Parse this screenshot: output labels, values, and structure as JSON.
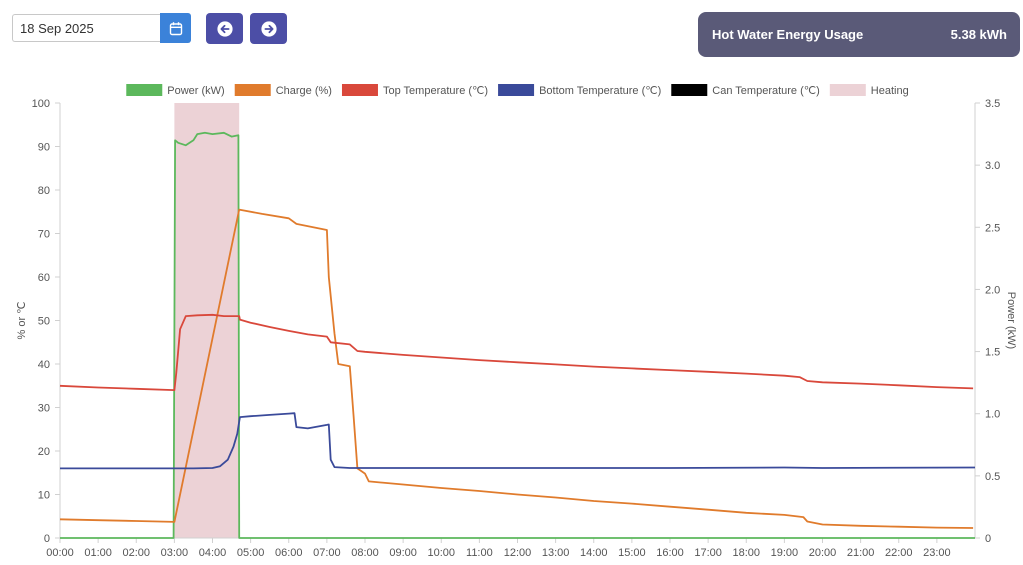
{
  "toolbar": {
    "date_value": "18 Sep 2025",
    "calendar_icon": "calendar-icon",
    "prev_icon": "arrow-left-circle-icon",
    "next_icon": "arrow-right-circle-icon"
  },
  "usage_card": {
    "label": "Hot Water Energy Usage",
    "value": "5.38 kWh"
  },
  "colors": {
    "accent_blue": "#3b82d9",
    "nav": "#4c4ea6",
    "card": "#5a5a78",
    "power": "#5cb85c",
    "charge": "#e07b2c",
    "top_temp": "#d9483b",
    "bottom_temp": "#3a4a9a",
    "can_temp": "#000000",
    "heating": "#ecd2d6"
  },
  "chart_data": {
    "type": "line",
    "legend_position": "top",
    "grid": false,
    "x_ticks": [
      "00:00",
      "01:00",
      "02:00",
      "03:00",
      "04:00",
      "05:00",
      "06:00",
      "07:00",
      "08:00",
      "09:00",
      "10:00",
      "11:00",
      "12:00",
      "13:00",
      "14:00",
      "15:00",
      "16:00",
      "17:00",
      "18:00",
      "19:00",
      "20:00",
      "21:00",
      "22:00",
      "23:00"
    ],
    "x_range_hours": [
      0,
      24
    ],
    "y_left": {
      "label": "% or ℃",
      "range": [
        0,
        100
      ],
      "ticks": [
        "0",
        "10",
        "20",
        "30",
        "40",
        "50",
        "60",
        "70",
        "80",
        "90",
        "100"
      ]
    },
    "y_right": {
      "label": "Power (kW)",
      "range": [
        0,
        3.5
      ],
      "ticks": [
        "0",
        "0.5",
        "1.0",
        "1.5",
        "2.0",
        "2.5",
        "3.0",
        "3.5"
      ]
    },
    "heating_periods": [
      [
        3.0,
        4.7
      ]
    ],
    "series": [
      {
        "name": "Power (kW)",
        "axis": "right",
        "color": "#5cb85c",
        "points": [
          [
            0,
            0
          ],
          [
            2.98,
            0
          ],
          [
            3.02,
            3.2
          ],
          [
            3.1,
            3.18
          ],
          [
            3.3,
            3.16
          ],
          [
            3.5,
            3.2
          ],
          [
            3.6,
            3.25
          ],
          [
            3.8,
            3.26
          ],
          [
            4.0,
            3.25
          ],
          [
            4.3,
            3.26
          ],
          [
            4.5,
            3.23
          ],
          [
            4.68,
            3.24
          ],
          [
            4.7,
            0
          ],
          [
            24,
            0
          ]
        ]
      },
      {
        "name": "Charge (%)",
        "axis": "left",
        "color": "#e07b2c",
        "points": [
          [
            0,
            4.3
          ],
          [
            1.0,
            4.1
          ],
          [
            2.0,
            3.9
          ],
          [
            3.0,
            3.7
          ],
          [
            4.7,
            75.5
          ],
          [
            5.3,
            74.5
          ],
          [
            6.0,
            73.5
          ],
          [
            6.2,
            72.2
          ],
          [
            7.0,
            70.8
          ],
          [
            7.05,
            60
          ],
          [
            7.2,
            47
          ],
          [
            7.3,
            40
          ],
          [
            7.6,
            39.5
          ],
          [
            7.7,
            28
          ],
          [
            7.8,
            16
          ],
          [
            8.0,
            14.8
          ],
          [
            8.1,
            13
          ],
          [
            9.0,
            12.3
          ],
          [
            10.0,
            11.5
          ],
          [
            11.0,
            10.8
          ],
          [
            12.0,
            10.0
          ],
          [
            13.0,
            9.3
          ],
          [
            14.0,
            8.5
          ],
          [
            15.0,
            7.9
          ],
          [
            16.0,
            7.2
          ],
          [
            17.0,
            6.5
          ],
          [
            18.0,
            5.8
          ],
          [
            19.0,
            5.3
          ],
          [
            19.5,
            4.8
          ],
          [
            19.6,
            3.8
          ],
          [
            20.0,
            3.1
          ],
          [
            21.0,
            2.8
          ],
          [
            22.0,
            2.6
          ],
          [
            23.0,
            2.4
          ],
          [
            23.95,
            2.3
          ]
        ]
      },
      {
        "name": "Top Temperature (℃)",
        "axis": "left",
        "color": "#d9483b",
        "points": [
          [
            0,
            35
          ],
          [
            1.0,
            34.6
          ],
          [
            2.0,
            34.3
          ],
          [
            3.0,
            34.0
          ],
          [
            3.05,
            38
          ],
          [
            3.15,
            48
          ],
          [
            3.3,
            51
          ],
          [
            3.6,
            51.2
          ],
          [
            4.0,
            51.3
          ],
          [
            4.3,
            51.0
          ],
          [
            4.7,
            51
          ],
          [
            4.72,
            50.2
          ],
          [
            5.0,
            49.5
          ],
          [
            5.5,
            48.5
          ],
          [
            6.0,
            47.6
          ],
          [
            6.5,
            46.8
          ],
          [
            7.0,
            46.3
          ],
          [
            7.1,
            45
          ],
          [
            7.6,
            44.5
          ],
          [
            7.8,
            43
          ],
          [
            8.0,
            42.8
          ],
          [
            9.0,
            42.1
          ],
          [
            10.0,
            41.5
          ],
          [
            11.0,
            40.9
          ],
          [
            12.0,
            40.4
          ],
          [
            13.0,
            39.9
          ],
          [
            14.0,
            39.4
          ],
          [
            15.0,
            39.0
          ],
          [
            16.0,
            38.6
          ],
          [
            17.0,
            38.2
          ],
          [
            18.0,
            37.8
          ],
          [
            19.0,
            37.3
          ],
          [
            19.4,
            37
          ],
          [
            19.6,
            36.1
          ],
          [
            20.0,
            35.8
          ],
          [
            21.0,
            35.5
          ],
          [
            22.0,
            35.1
          ],
          [
            23.0,
            34.7
          ],
          [
            23.95,
            34.4
          ]
        ]
      },
      {
        "name": "Bottom Temperature (℃)",
        "axis": "left",
        "color": "#3a4a9a",
        "points": [
          [
            0,
            16
          ],
          [
            3.0,
            16
          ],
          [
            3.5,
            16
          ],
          [
            4.0,
            16.1
          ],
          [
            4.2,
            16.5
          ],
          [
            4.4,
            18
          ],
          [
            4.55,
            21
          ],
          [
            4.65,
            24
          ],
          [
            4.72,
            27.8
          ],
          [
            5.0,
            28.0
          ],
          [
            5.5,
            28.3
          ],
          [
            6.0,
            28.6
          ],
          [
            6.15,
            28.7
          ],
          [
            6.2,
            25.5
          ],
          [
            6.5,
            25.2
          ],
          [
            7.0,
            26.0
          ],
          [
            7.05,
            26.1
          ],
          [
            7.1,
            18
          ],
          [
            7.2,
            16.3
          ],
          [
            7.6,
            16.1
          ],
          [
            8.0,
            16.1
          ],
          [
            12.0,
            16.1
          ],
          [
            16.0,
            16.1
          ],
          [
            19.0,
            16.2
          ],
          [
            20.0,
            16.1
          ],
          [
            24,
            16.2
          ]
        ]
      },
      {
        "name": "Can Temperature (℃)",
        "axis": "left",
        "color": "#000000",
        "points": []
      },
      {
        "name": "Heating",
        "type": "area",
        "color": "#ecd2d6"
      }
    ]
  }
}
